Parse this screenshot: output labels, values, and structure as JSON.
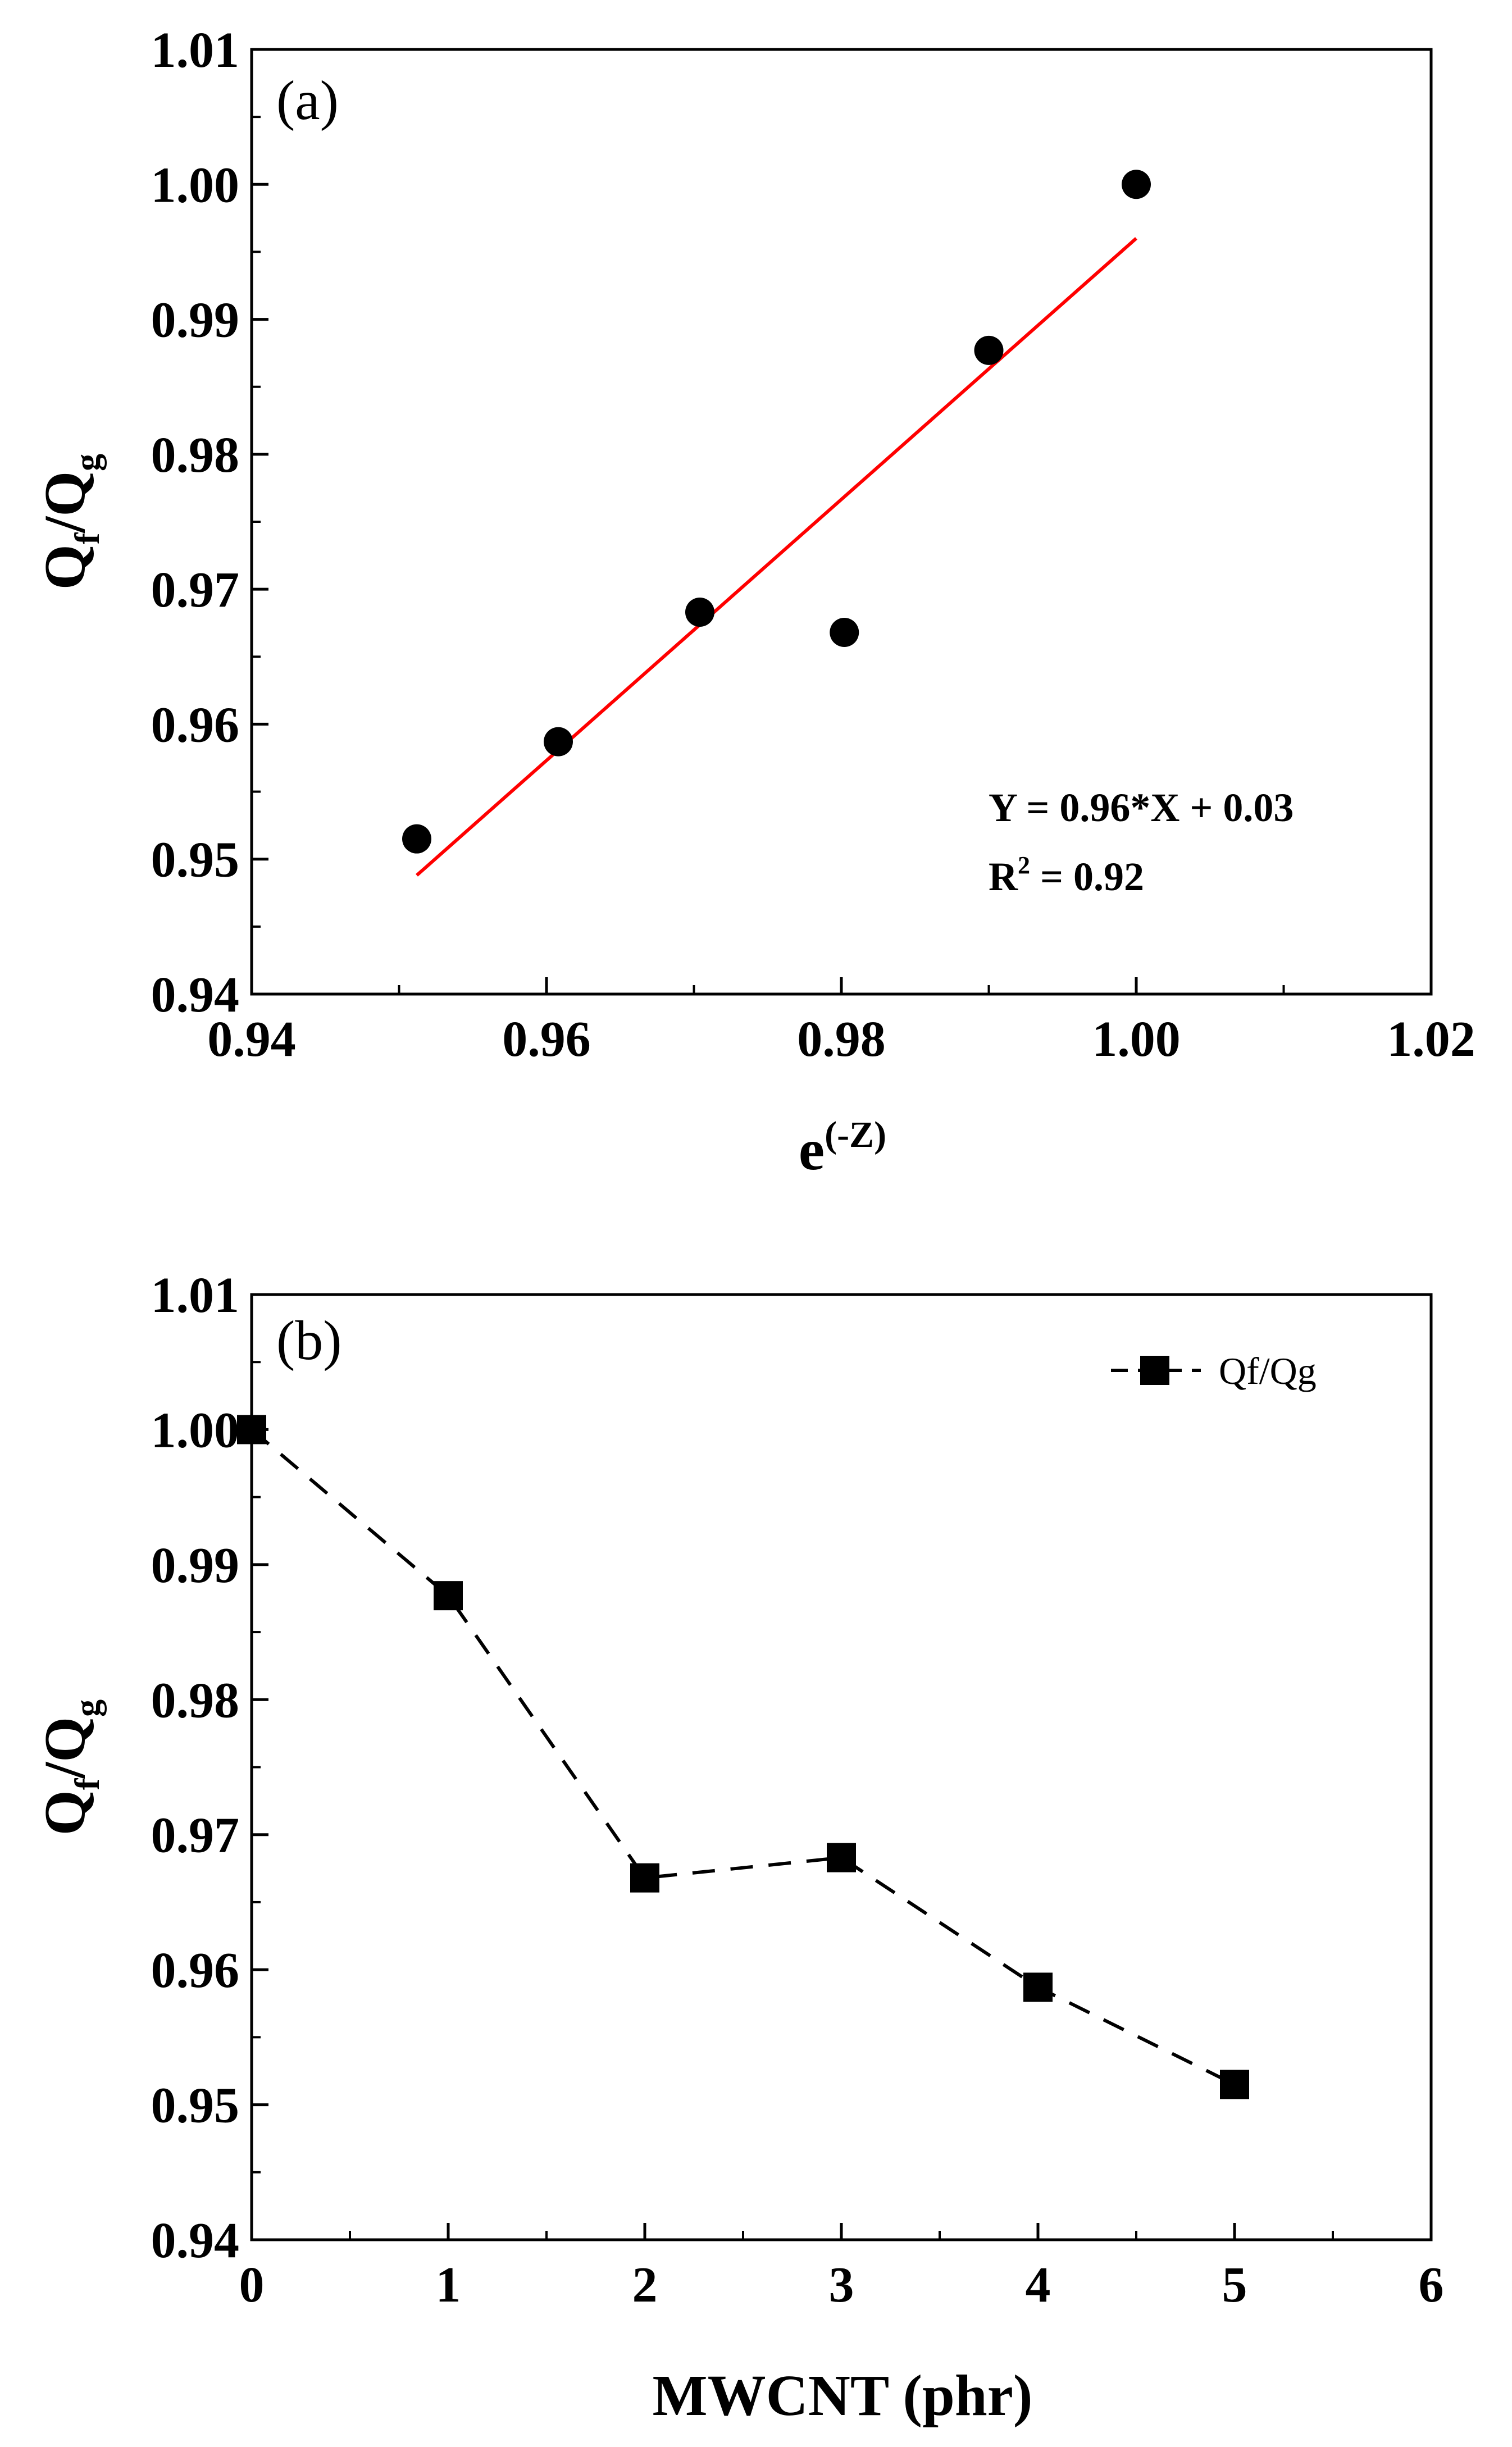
{
  "chart_data": [
    {
      "panel": "(a)",
      "type": "scatter",
      "xlabel": {
        "base": "e",
        "sup": "(-Z)"
      },
      "ylabel": {
        "q1": "Q",
        "sub1": "f",
        "slash": "/",
        "q2": "Q",
        "sub2": "g"
      },
      "xlim": [
        0.94,
        1.02
      ],
      "ylim": [
        0.94,
        1.01
      ],
      "xticks": [
        0.94,
        0.96,
        0.98,
        1.0,
        1.02
      ],
      "xtick_labels": [
        "0.94",
        "0.96",
        "0.98",
        "1.00",
        "1.02"
      ],
      "yticks": [
        0.94,
        0.95,
        0.96,
        0.97,
        0.98,
        0.99,
        1.0,
        1.01
      ],
      "ytick_labels": [
        "0.94",
        "0.95",
        "0.96",
        "0.97",
        "0.98",
        "0.99",
        "1.00",
        "1.01"
      ],
      "series": [
        {
          "name": "data",
          "marker": "circle",
          "color": "#000000",
          "x": [
            0.9512,
            0.9608,
            0.9704,
            0.9802,
            0.99,
            1.0
          ],
          "y": [
            0.9515,
            0.9587,
            0.9683,
            0.9668,
            0.9877,
            1.0
          ]
        },
        {
          "name": "linear-fit",
          "style": "line",
          "color": "#ff0000",
          "x": [
            0.9512,
            1.0
          ],
          "y": [
            0.9488,
            0.996
          ]
        }
      ],
      "annotations": {
        "equation": "Y = 0.96*X + 0.03",
        "r2_prefix": "R",
        "r2_sup": "2",
        "r2_value": " = 0.92"
      },
      "grid": false
    },
    {
      "panel": "(b)",
      "type": "line",
      "xlabel": "MWCNT (phr)",
      "ylabel": {
        "q1": "Q",
        "sub1": "f",
        "slash": "/",
        "q2": "Q",
        "sub2": "g"
      },
      "xlim": [
        0,
        6
      ],
      "ylim": [
        0.94,
        1.01
      ],
      "xticks": [
        0,
        1,
        2,
        3,
        4,
        5,
        6
      ],
      "xtick_labels": [
        "0",
        "1",
        "2",
        "3",
        "4",
        "5",
        "6"
      ],
      "yticks": [
        0.94,
        0.95,
        0.96,
        0.97,
        0.98,
        0.99,
        1.0,
        1.01
      ],
      "ytick_labels": [
        "0.94",
        "0.95",
        "0.96",
        "0.97",
        "0.98",
        "0.99",
        "1.00",
        "1.01"
      ],
      "series": [
        {
          "name": "Qf/Qg",
          "marker": "square",
          "line": "dashed",
          "color": "#000000",
          "x": [
            0,
            1,
            2,
            3,
            4,
            5
          ],
          "y": [
            1.0,
            0.9877,
            0.9668,
            0.9683,
            0.9587,
            0.9515
          ]
        }
      ],
      "legend": {
        "label": "Qf/Qg",
        "position": "top-right"
      },
      "grid": false
    }
  ]
}
